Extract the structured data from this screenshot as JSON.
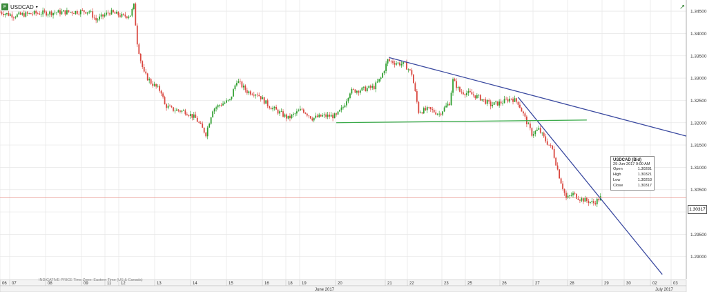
{
  "symbol": {
    "label": "USDCAD",
    "icon": "instrument-icon",
    "caret": "▾"
  },
  "expand_icon": "expand-arrow-icon",
  "footer": {
    "note": "INDICATIVE PRICE  Time Zone: Eastern Time (US & Canada)"
  },
  "tooltip": {
    "title": "USDCAD (Bid)",
    "datetime": "29-Jun-2017 9:00 AM",
    "rows": [
      {
        "label": "Open",
        "value": "1.30281"
      },
      {
        "label": "High",
        "value": "1.30321"
      },
      {
        "label": "Low",
        "value": "1.30253"
      },
      {
        "label": "Close",
        "value": "1.30317"
      }
    ]
  },
  "colors": {
    "up": "#2e9e2e",
    "down": "#d9473f",
    "trendline": "#3b4aa0",
    "support": "#3aaa4a",
    "price_line": "#e88a80",
    "grid": "#e6e6e6"
  },
  "chart_data": {
    "type": "candlestick",
    "title": "USDCAD",
    "ylim": [
      1.285,
      1.3475
    ],
    "yticks": [
      1.29,
      1.295,
      1.3,
      1.305,
      1.31,
      1.315,
      1.32,
      1.325,
      1.33,
      1.335,
      1.34,
      1.345
    ],
    "ytick_labels": [
      "1.29000",
      "1.29500",
      "1.30000",
      "1.30500",
      "1.31000",
      "1.31500",
      "1.32000",
      "1.32500",
      "1.33000",
      "1.33500",
      "1.34000",
      "1.34500"
    ],
    "x_day_labels": [
      "06",
      "07",
      "08",
      "09",
      "11",
      "12",
      "13",
      "14",
      "15",
      "16",
      "18",
      "19",
      "20",
      "21",
      "22",
      "23",
      "25",
      "26",
      "27",
      "28",
      "29",
      "30",
      "02",
      "03"
    ],
    "month_labels": [
      "June 2017",
      "July 2017"
    ],
    "current_price": 1.30317,
    "current_price_label": "1.30317",
    "price_path": [
      [
        0,
        1.3448
      ],
      [
        0.02,
        1.344
      ],
      [
        0.05,
        1.3445
      ],
      [
        0.13,
        1.345
      ],
      [
        0.14,
        1.343
      ],
      [
        0.16,
        1.3448
      ],
      [
        0.18,
        1.3438
      ],
      [
        0.19,
        1.3442
      ],
      [
        0.195,
        1.3462
      ],
      [
        0.2,
        1.338
      ],
      [
        0.205,
        1.334
      ],
      [
        0.21,
        1.331
      ],
      [
        0.22,
        1.329
      ],
      [
        0.235,
        1.327
      ],
      [
        0.24,
        1.324
      ],
      [
        0.25,
        1.323
      ],
      [
        0.27,
        1.3225
      ],
      [
        0.285,
        1.321
      ],
      [
        0.3,
        1.3175
      ],
      [
        0.31,
        1.323
      ],
      [
        0.32,
        1.324
      ],
      [
        0.335,
        1.325
      ],
      [
        0.345,
        1.3295
      ],
      [
        0.36,
        1.327
      ],
      [
        0.375,
        1.3265
      ],
      [
        0.39,
        1.324
      ],
      [
        0.405,
        1.3225
      ],
      [
        0.42,
        1.321
      ],
      [
        0.44,
        1.323
      ],
      [
        0.455,
        1.321
      ],
      [
        0.47,
        1.3215
      ],
      [
        0.49,
        1.3215
      ],
      [
        0.5,
        1.3235
      ],
      [
        0.51,
        1.327
      ],
      [
        0.53,
        1.3275
      ],
      [
        0.545,
        1.328
      ],
      [
        0.555,
        1.33
      ],
      [
        0.565,
        1.334
      ],
      [
        0.575,
        1.3335
      ],
      [
        0.59,
        1.333
      ],
      [
        0.6,
        1.331
      ],
      [
        0.61,
        1.3225
      ],
      [
        0.625,
        1.323
      ],
      [
        0.64,
        1.322
      ],
      [
        0.655,
        1.3245
      ],
      [
        0.66,
        1.3295
      ],
      [
        0.67,
        1.327
      ],
      [
        0.685,
        1.3265
      ],
      [
        0.7,
        1.3255
      ],
      [
        0.715,
        1.324
      ],
      [
        0.73,
        1.3245
      ],
      [
        0.745,
        1.3255
      ],
      [
        0.755,
        1.3245
      ],
      [
        0.765,
        1.321
      ],
      [
        0.775,
        1.3175
      ],
      [
        0.785,
        1.3185
      ],
      [
        0.795,
        1.316
      ],
      [
        0.805,
        1.314
      ],
      [
        0.815,
        1.308
      ],
      [
        0.825,
        1.303
      ],
      [
        0.835,
        1.304
      ],
      [
        0.845,
        1.303
      ],
      [
        0.855,
        1.3025
      ],
      [
        0.865,
        1.302
      ],
      [
        0.875,
        1.3032
      ]
    ],
    "lines": [
      {
        "name": "",
        "x": [
          0.567,
          1.0
        ],
        "y": [
          1.3346,
          1.317
        ]
      },
      {
        "name": "",
        "x": [
          0.755,
          0.965
        ],
        "y": [
          1.3257,
          1.286
        ]
      },
      {
        "name": "",
        "x": [
          0.49,
          0.855
        ],
        "y": [
          1.32,
          1.3206
        ]
      }
    ]
  }
}
